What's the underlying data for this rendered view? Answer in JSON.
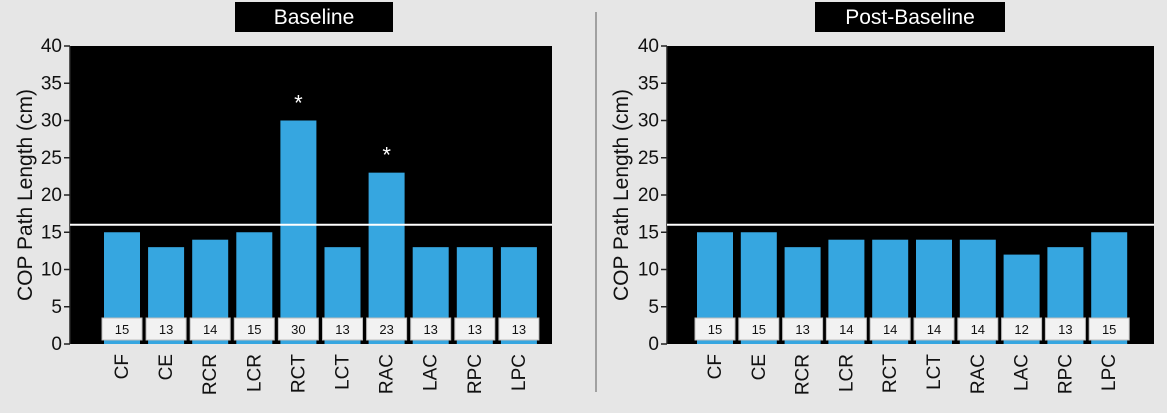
{
  "chart_data": [
    {
      "type": "bar",
      "title": "Baseline",
      "ylabel": "COP Path Length (cm)",
      "ylim": [
        0,
        40
      ],
      "yticks": [
        0,
        5,
        10,
        15,
        20,
        25,
        30,
        35,
        40
      ],
      "categories": [
        "CF",
        "CE",
        "RCR",
        "LCR",
        "RCT",
        "LCT",
        "RAC",
        "LAC",
        "RPC",
        "LPC"
      ],
      "values": [
        15,
        13,
        14,
        15,
        30,
        13,
        23,
        13,
        13,
        13
      ],
      "annotations": [
        "",
        "",
        "",
        "",
        "*",
        "",
        "*",
        "",
        "",
        ""
      ],
      "reference_line": 16,
      "plot_background": "#000000",
      "bar_color": "#36a6e0"
    },
    {
      "type": "bar",
      "title": "Post-Baseline",
      "ylabel": "COP Path Length (cm)",
      "ylim": [
        0,
        40
      ],
      "yticks": [
        0,
        5,
        10,
        15,
        20,
        25,
        30,
        35,
        40
      ],
      "categories": [
        "CF",
        "CE",
        "RCR",
        "LCR",
        "RCT",
        "LCT",
        "RAC",
        "LAC",
        "RPC",
        "LPC"
      ],
      "values": [
        15,
        15,
        13,
        14,
        14,
        14,
        14,
        12,
        13,
        15
      ],
      "annotations": [
        "",
        "",
        "",
        "",
        "",
        "",
        "",
        "",
        "",
        ""
      ],
      "reference_line": 16,
      "plot_background": "#000000",
      "bar_color": "#36a6e0"
    }
  ]
}
